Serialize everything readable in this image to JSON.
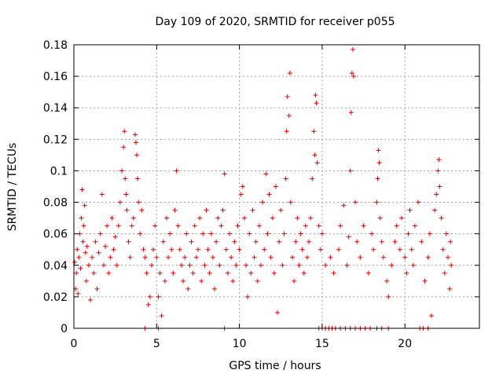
{
  "chart_data": {
    "type": "scatter",
    "title": "Day 109 of 2020, SRMTID for receiver p055",
    "xlabel": "GPS time / hours",
    "ylabel": "SRMTID / TECUs",
    "xlim": [
      0,
      24.5
    ],
    "ylim": [
      0,
      0.18
    ],
    "xticks": [
      0,
      5,
      10,
      15,
      20
    ],
    "xtick_labels": [
      "0",
      "5",
      "10",
      "15",
      "20"
    ],
    "yticks": [
      0,
      0.02,
      0.04,
      0.06,
      0.08,
      0.1,
      0.12,
      0.14,
      0.16,
      0.18
    ],
    "ytick_labels": [
      "0",
      "0.02",
      "0.04",
      "0.06",
      "0.08",
      "0.1",
      "0.12",
      "0.14",
      "0.16",
      "0.18"
    ],
    "grid": true,
    "marker": "plus",
    "series": [
      {
        "name": "SRMTID",
        "color": "#e00000",
        "points": [
          [
            0.05,
            0.042
          ],
          [
            0.1,
            0.025
          ],
          [
            0.15,
            0.035
          ],
          [
            0.2,
            0.05
          ],
          [
            0.25,
            0.022
          ],
          [
            0.3,
            0.045
          ],
          [
            0.35,
            0.06
          ],
          [
            0.4,
            0.038
          ],
          [
            0.45,
            0.07
          ],
          [
            0.5,
            0.088
          ],
          [
            0.55,
            0.055
          ],
          [
            0.6,
            0.065
          ],
          [
            0.65,
            0.078
          ],
          [
            0.7,
            0.048
          ],
          [
            0.75,
            0.03
          ],
          [
            0.8,
            0.052
          ],
          [
            0.9,
            0.04
          ],
          [
            1.0,
            0.018
          ],
          [
            1.1,
            0.045
          ],
          [
            1.2,
            0.035
          ],
          [
            1.3,
            0.055
          ],
          [
            1.4,
            0.025
          ],
          [
            1.5,
            0.048
          ],
          [
            1.6,
            0.06
          ],
          [
            1.7,
            0.085
          ],
          [
            1.8,
            0.04
          ],
          [
            1.9,
            0.052
          ],
          [
            2.0,
            0.065
          ],
          [
            2.1,
            0.035
          ],
          [
            2.2,
            0.045
          ],
          [
            2.3,
            0.07
          ],
          [
            2.4,
            0.05
          ],
          [
            2.5,
            0.058
          ],
          [
            2.6,
            0.04
          ],
          [
            2.7,
            0.065
          ],
          [
            2.8,
            0.08
          ],
          [
            2.9,
            0.1
          ],
          [
            3.0,
            0.115
          ],
          [
            3.05,
            0.125
          ],
          [
            3.1,
            0.095
          ],
          [
            3.15,
            0.085
          ],
          [
            3.2,
            0.075
          ],
          [
            3.3,
            0.055
          ],
          [
            3.4,
            0.045
          ],
          [
            3.5,
            0.065
          ],
          [
            3.6,
            0.07
          ],
          [
            3.7,
            0.123
          ],
          [
            3.75,
            0.118
          ],
          [
            3.8,
            0.11
          ],
          [
            3.85,
            0.095
          ],
          [
            3.9,
            0.08
          ],
          [
            4.0,
            0.06
          ],
          [
            4.1,
            0.075
          ],
          [
            4.2,
            0.05
          ],
          [
            4.3,
            0.045
          ],
          [
            4.4,
            0.035
          ],
          [
            4.5,
            0.015
          ],
          [
            4.6,
            0.02
          ],
          [
            4.7,
            0.04
          ],
          [
            4.8,
            0.05
          ],
          [
            4.9,
            0.065
          ],
          [
            5.0,
            0.045
          ],
          [
            5.1,
            0.02
          ],
          [
            5.2,
            0.035
          ],
          [
            5.3,
            0.008
          ],
          [
            5.4,
            0.055
          ],
          [
            5.5,
            0.03
          ],
          [
            5.6,
            0.07
          ],
          [
            5.7,
            0.045
          ],
          [
            5.8,
            0.06
          ],
          [
            5.9,
            0.05
          ],
          [
            6.0,
            0.035
          ],
          [
            6.1,
            0.075
          ],
          [
            6.2,
            0.1
          ],
          [
            6.3,
            0.065
          ],
          [
            6.4,
            0.05
          ],
          [
            6.5,
            0.04
          ],
          [
            6.6,
            0.03
          ],
          [
            6.7,
            0.045
          ],
          [
            6.8,
            0.06
          ],
          [
            6.9,
            0.025
          ],
          [
            7.0,
            0.04
          ],
          [
            7.1,
            0.055
          ],
          [
            7.2,
            0.035
          ],
          [
            7.3,
            0.065
          ],
          [
            7.4,
            0.045
          ],
          [
            7.5,
            0.05
          ],
          [
            7.6,
            0.07
          ],
          [
            7.7,
            0.03
          ],
          [
            7.8,
            0.06
          ],
          [
            7.9,
            0.04
          ],
          [
            8.0,
            0.075
          ],
          [
            8.1,
            0.05
          ],
          [
            8.2,
            0.035
          ],
          [
            8.3,
            0.06
          ],
          [
            8.4,
            0.045
          ],
          [
            8.5,
            0.025
          ],
          [
            8.6,
            0.055
          ],
          [
            8.7,
            0.07
          ],
          [
            8.8,
            0.04
          ],
          [
            8.9,
            0.065
          ],
          [
            9.0,
            0.075
          ],
          [
            9.1,
            0.098
          ],
          [
            9.2,
            0.05
          ],
          [
            9.3,
            0.035
          ],
          [
            9.4,
            0.06
          ],
          [
            9.5,
            0.045
          ],
          [
            9.6,
            0.03
          ],
          [
            9.7,
            0.055
          ],
          [
            9.8,
            0.04
          ],
          [
            9.9,
            0.065
          ],
          [
            10.0,
            0.05
          ],
          [
            10.1,
            0.085
          ],
          [
            10.2,
            0.09
          ],
          [
            10.3,
            0.07
          ],
          [
            10.4,
            0.04
          ],
          [
            10.5,
            0.02
          ],
          [
            10.6,
            0.06
          ],
          [
            10.7,
            0.035
          ],
          [
            10.8,
            0.075
          ],
          [
            10.9,
            0.045
          ],
          [
            11.0,
            0.055
          ],
          [
            11.1,
            0.03
          ],
          [
            11.2,
            0.065
          ],
          [
            11.3,
            0.04
          ],
          [
            11.4,
            0.08
          ],
          [
            11.5,
            0.05
          ],
          [
            11.6,
            0.098
          ],
          [
            11.7,
            0.06
          ],
          [
            11.8,
            0.085
          ],
          [
            11.9,
            0.045
          ],
          [
            12.0,
            0.07
          ],
          [
            12.1,
            0.035
          ],
          [
            12.2,
            0.09
          ],
          [
            12.3,
            0.01
          ],
          [
            12.4,
            0.055
          ],
          [
            12.5,
            0.075
          ],
          [
            12.6,
            0.04
          ],
          [
            12.7,
            0.06
          ],
          [
            12.8,
            0.095
          ],
          [
            12.85,
            0.125
          ],
          [
            12.9,
            0.147
          ],
          [
            13.0,
            0.135
          ],
          [
            13.05,
            0.162
          ],
          [
            13.1,
            0.08
          ],
          [
            13.2,
            0.045
          ],
          [
            13.3,
            0.03
          ],
          [
            13.4,
            0.055
          ],
          [
            13.5,
            0.07
          ],
          [
            13.6,
            0.04
          ],
          [
            13.7,
            0.06
          ],
          [
            13.8,
            0.05
          ],
          [
            13.9,
            0.035
          ],
          [
            14.0,
            0.065
          ],
          [
            14.1,
            0.045
          ],
          [
            14.2,
            0.055
          ],
          [
            14.3,
            0.07
          ],
          [
            14.4,
            0.095
          ],
          [
            14.5,
            0.125
          ],
          [
            14.55,
            0.11
          ],
          [
            14.6,
            0.148
          ],
          [
            14.65,
            0.143
          ],
          [
            14.7,
            0.105
          ],
          [
            14.8,
            0.065
          ],
          [
            14.9,
            0.05
          ],
          [
            15.0,
            0.06
          ],
          [
            15.2,
            0.04
          ],
          [
            15.5,
            0.045
          ],
          [
            15.7,
            0.035
          ],
          [
            16.0,
            0.05
          ],
          [
            16.1,
            0.065
          ],
          [
            16.3,
            0.078
          ],
          [
            16.5,
            0.04
          ],
          [
            16.6,
            0.058
          ],
          [
            16.7,
            0.1
          ],
          [
            16.75,
            0.137
          ],
          [
            16.8,
            0.162
          ],
          [
            16.85,
            0.177
          ],
          [
            16.9,
            0.16
          ],
          [
            17.0,
            0.08
          ],
          [
            17.1,
            0.055
          ],
          [
            17.3,
            0.045
          ],
          [
            17.5,
            0.065
          ],
          [
            17.8,
            0.035
          ],
          [
            18.0,
            0.06
          ],
          [
            18.1,
            0.05
          ],
          [
            18.3,
            0.08
          ],
          [
            18.35,
            0.095
          ],
          [
            18.4,
            0.113
          ],
          [
            18.45,
            0.105
          ],
          [
            18.5,
            0.07
          ],
          [
            18.6,
            0.055
          ],
          [
            18.7,
            0.045
          ],
          [
            18.9,
            0.03
          ],
          [
            19.0,
            0.02
          ],
          [
            19.2,
            0.04
          ],
          [
            19.4,
            0.055
          ],
          [
            19.5,
            0.065
          ],
          [
            19.7,
            0.05
          ],
          [
            19.8,
            0.07
          ],
          [
            20.0,
            0.045
          ],
          [
            20.1,
            0.035
          ],
          [
            20.2,
            0.06
          ],
          [
            20.3,
            0.075
          ],
          [
            20.4,
            0.05
          ],
          [
            20.5,
            0.04
          ],
          [
            20.6,
            0.065
          ],
          [
            20.8,
            0.08
          ],
          [
            21.0,
            0.055
          ],
          [
            21.2,
            0.03
          ],
          [
            21.4,
            0.045
          ],
          [
            21.5,
            0.06
          ],
          [
            21.6,
            0.008
          ],
          [
            21.8,
            0.075
          ],
          [
            21.9,
            0.085
          ],
          [
            22.0,
            0.1
          ],
          [
            22.05,
            0.107
          ],
          [
            22.1,
            0.09
          ],
          [
            22.2,
            0.07
          ],
          [
            22.3,
            0.05
          ],
          [
            22.4,
            0.035
          ],
          [
            22.5,
            0.06
          ],
          [
            22.6,
            0.045
          ],
          [
            22.7,
            0.025
          ],
          [
            22.75,
            0.055
          ],
          [
            22.8,
            0.04
          ],
          [
            4.3,
            0.0
          ],
          [
            5.1,
            0.0
          ],
          [
            9.1,
            0.0
          ],
          [
            14.8,
            0.0
          ],
          [
            15.0,
            0.0
          ],
          [
            15.2,
            0.0
          ],
          [
            15.4,
            0.0
          ],
          [
            15.6,
            0.0
          ],
          [
            15.8,
            0.0
          ],
          [
            16.1,
            0.0
          ],
          [
            16.4,
            0.0
          ],
          [
            16.7,
            0.0
          ],
          [
            17.0,
            0.0
          ],
          [
            17.3,
            0.0
          ],
          [
            17.6,
            0.0
          ],
          [
            17.9,
            0.0
          ],
          [
            18.3,
            0.0
          ],
          [
            18.6,
            0.0
          ],
          [
            19.0,
            0.0
          ],
          [
            20.9,
            0.0
          ],
          [
            21.1,
            0.0
          ],
          [
            21.4,
            0.0
          ]
        ]
      }
    ]
  }
}
